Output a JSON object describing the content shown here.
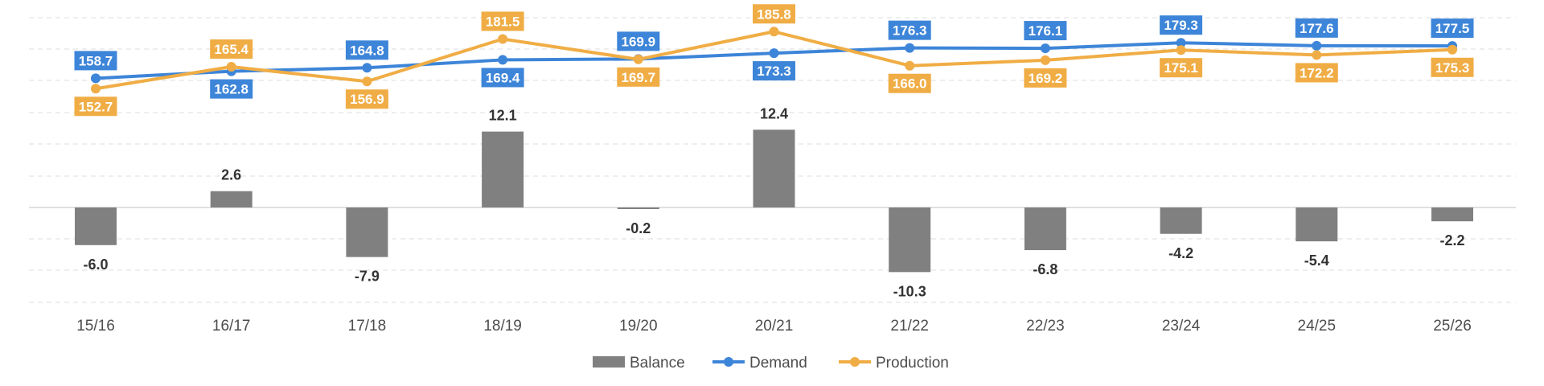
{
  "chart_data": {
    "type": "bar",
    "categories": [
      "15/16",
      "16/17",
      "17/18",
      "18/19",
      "19/20",
      "20/21",
      "21/22",
      "22/23",
      "23/24",
      "24/25",
      "25/26"
    ],
    "series": [
      {
        "name": "Balance",
        "type": "bar",
        "color": "#808080",
        "values": [
          -6.0,
          2.6,
          -7.9,
          12.1,
          -0.2,
          12.4,
          -10.3,
          -6.8,
          -4.2,
          -5.4,
          -2.2
        ]
      },
      {
        "name": "Demand",
        "type": "line",
        "color": "#3d85d8",
        "values": [
          158.7,
          162.8,
          164.8,
          169.4,
          169.9,
          173.3,
          176.3,
          176.1,
          179.3,
          177.6,
          177.5
        ]
      },
      {
        "name": "Production",
        "type": "line",
        "color": "#f0ad45",
        "values": [
          152.7,
          165.4,
          156.9,
          181.5,
          169.7,
          185.8,
          166.0,
          169.2,
          175.1,
          172.2,
          175.3
        ]
      }
    ],
    "grid": true,
    "legend": "bottom-center"
  }
}
